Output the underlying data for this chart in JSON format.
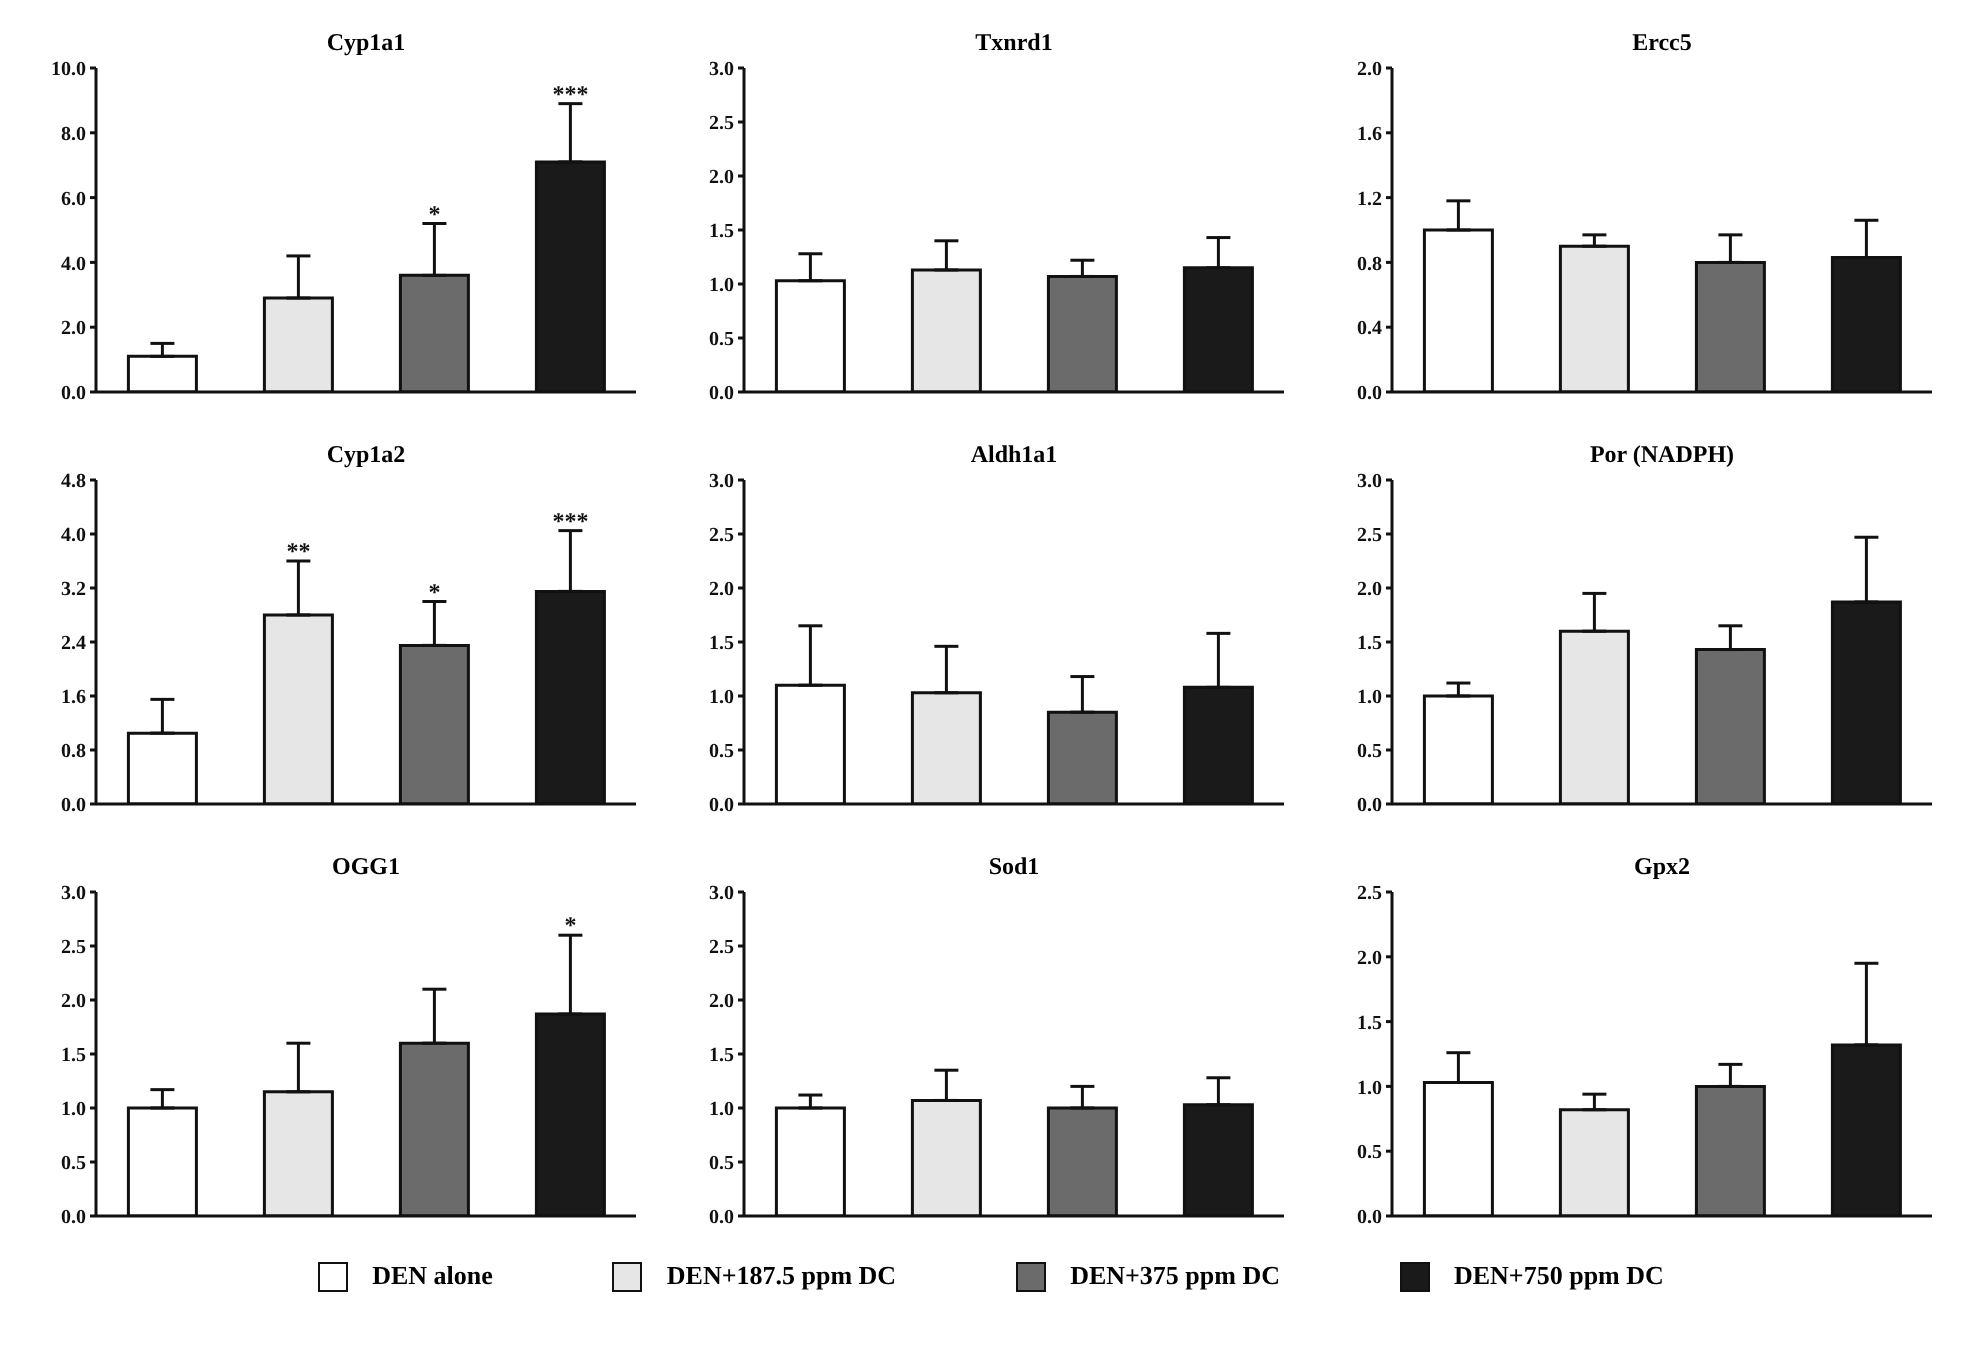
{
  "chart_data": [
    {
      "type": "bar",
      "title": "Cyp1a1",
      "categories": [
        null
      ],
      "legend": "bottom",
      "ylim": [
        0,
        10
      ],
      "yticks": [
        {
          "value": 0,
          "label": "0.0"
        },
        {
          "value": 2,
          "label": "2.0"
        },
        {
          "value": 4,
          "label": "4.0"
        },
        {
          "value": 6,
          "label": "6.0"
        },
        {
          "value": 8,
          "label": "8.0"
        },
        {
          "value": 10,
          "label": "10.0"
        }
      ],
      "series": [
        {
          "name": "DEN alone",
          "color": "#ffffff",
          "values": [
            1.1
          ],
          "errors": [
            [
              1.1,
              1.5
            ]
          ]
        },
        {
          "name": "DEN+187.5 ppm DC",
          "color": "#e6e6e6",
          "values": [
            2.9
          ],
          "errors": [
            [
              2.9,
              4.2
            ]
          ]
        },
        {
          "name": "DEN+375 ppm DC",
          "color": "#6b6b6b",
          "values": [
            3.6
          ],
          "errors": [
            [
              3.6,
              5.2
            ]
          ],
          "value_labels": [
            "*"
          ]
        },
        {
          "name": "DEN+750 ppm DC",
          "color": "#1a1a1a",
          "values": [
            7.1
          ],
          "errors": [
            [
              7.1,
              8.9
            ]
          ],
          "value_labels": [
            "***"
          ]
        }
      ]
    },
    {
      "type": "bar",
      "title": "Txnrd1",
      "categories": [
        null
      ],
      "ylim": [
        0,
        3
      ],
      "yticks": [
        {
          "value": 0,
          "label": "0.0"
        },
        {
          "value": 0.5,
          "label": "0.5"
        },
        {
          "value": 1,
          "label": "1.0"
        },
        {
          "value": 1.5,
          "label": "1.5"
        },
        {
          "value": 2,
          "label": "2.0"
        },
        {
          "value": 2.5,
          "label": "2.5"
        },
        {
          "value": 3,
          "label": "3.0"
        }
      ],
      "series": [
        {
          "color": "#ffffff",
          "values": [
            1.03
          ],
          "errors": [
            [
              1.03,
              1.28
            ]
          ]
        },
        {
          "color": "#e6e6e6",
          "values": [
            1.13
          ],
          "errors": [
            [
              1.13,
              1.4
            ]
          ]
        },
        {
          "color": "#6b6b6b",
          "values": [
            1.07
          ],
          "errors": [
            [
              1.07,
              1.22
            ]
          ]
        },
        {
          "color": "#1a1a1a",
          "values": [
            1.15
          ],
          "errors": [
            [
              1.15,
              1.43
            ]
          ]
        }
      ]
    },
    {
      "type": "bar",
      "title": "Ercc5",
      "categories": [
        null
      ],
      "ylim": [
        0,
        2
      ],
      "yticks": [
        {
          "value": 0,
          "label": "0.0"
        },
        {
          "value": 0.4,
          "label": "0.4"
        },
        {
          "value": 0.8,
          "label": "0.8"
        },
        {
          "value": 1.2,
          "label": "1.2"
        },
        {
          "value": 1.6,
          "label": "1.6"
        },
        {
          "value": 2,
          "label": "2.0"
        }
      ],
      "series": [
        {
          "color": "#ffffff",
          "values": [
            1.0
          ],
          "errors": [
            [
              1.0,
              1.18
            ]
          ]
        },
        {
          "color": "#e6e6e6",
          "values": [
            0.9
          ],
          "errors": [
            [
              0.9,
              0.97
            ]
          ]
        },
        {
          "color": "#6b6b6b",
          "values": [
            0.8
          ],
          "errors": [
            [
              0.8,
              0.97
            ]
          ]
        },
        {
          "color": "#1a1a1a",
          "values": [
            0.83
          ],
          "errors": [
            [
              0.83,
              1.06
            ]
          ]
        }
      ]
    },
    {
      "type": "bar",
      "title": "Cyp1a2",
      "categories": [
        null
      ],
      "ylim": [
        0,
        4.8
      ],
      "yticks": [
        {
          "value": 0,
          "label": "0.0"
        },
        {
          "value": 0.8,
          "label": "0.8"
        },
        {
          "value": 1.6,
          "label": "1.6"
        },
        {
          "value": 2.4,
          "label": "2.4"
        },
        {
          "value": 3.2,
          "label": "3.2"
        },
        {
          "value": 4,
          "label": "4.0"
        },
        {
          "value": 4.8,
          "label": "4.8"
        }
      ],
      "series": [
        {
          "color": "#ffffff",
          "values": [
            1.05
          ],
          "errors": [
            [
              1.05,
              1.55
            ]
          ]
        },
        {
          "color": "#e6e6e6",
          "values": [
            2.8
          ],
          "errors": [
            [
              2.8,
              3.6
            ]
          ],
          "value_labels": [
            "**"
          ]
        },
        {
          "color": "#6b6b6b",
          "values": [
            2.35
          ],
          "errors": [
            [
              2.35,
              3.0
            ]
          ],
          "value_labels": [
            "*"
          ]
        },
        {
          "color": "#1a1a1a",
          "values": [
            3.15
          ],
          "errors": [
            [
              3.15,
              4.05
            ]
          ],
          "value_labels": [
            "***"
          ]
        }
      ]
    },
    {
      "type": "bar",
      "title": "Aldh1a1",
      "categories": [
        null
      ],
      "ylim": [
        0,
        3
      ],
      "yticks": [
        {
          "value": 0,
          "label": "0.0"
        },
        {
          "value": 0.5,
          "label": "0.5"
        },
        {
          "value": 1,
          "label": "1.0"
        },
        {
          "value": 1.5,
          "label": "1.5"
        },
        {
          "value": 2,
          "label": "2.0"
        },
        {
          "value": 2.5,
          "label": "2.5"
        },
        {
          "value": 3,
          "label": "3.0"
        }
      ],
      "series": [
        {
          "color": "#ffffff",
          "values": [
            1.1
          ],
          "errors": [
            [
              1.1,
              1.65
            ]
          ]
        },
        {
          "color": "#e6e6e6",
          "values": [
            1.03
          ],
          "errors": [
            [
              1.03,
              1.46
            ]
          ]
        },
        {
          "color": "#6b6b6b",
          "values": [
            0.85
          ],
          "errors": [
            [
              0.85,
              1.18
            ]
          ]
        },
        {
          "color": "#1a1a1a",
          "values": [
            1.08
          ],
          "errors": [
            [
              1.08,
              1.58
            ]
          ]
        }
      ]
    },
    {
      "type": "bar",
      "title": "Por (NADPH)",
      "categories": [
        null
      ],
      "ylim": [
        0,
        3
      ],
      "yticks": [
        {
          "value": 0,
          "label": "0.0"
        },
        {
          "value": 0.5,
          "label": "0.5"
        },
        {
          "value": 1,
          "label": "1.0"
        },
        {
          "value": 1.5,
          "label": "1.5"
        },
        {
          "value": 2,
          "label": "2.0"
        },
        {
          "value": 2.5,
          "label": "2.5"
        },
        {
          "value": 3,
          "label": "3.0"
        }
      ],
      "series": [
        {
          "color": "#ffffff",
          "values": [
            1.0
          ],
          "errors": [
            [
              1.0,
              1.12
            ]
          ]
        },
        {
          "color": "#e6e6e6",
          "values": [
            1.6
          ],
          "errors": [
            [
              1.6,
              1.95
            ]
          ]
        },
        {
          "color": "#6b6b6b",
          "values": [
            1.43
          ],
          "errors": [
            [
              1.43,
              1.65
            ]
          ]
        },
        {
          "color": "#1a1a1a",
          "values": [
            1.87
          ],
          "errors": [
            [
              1.87,
              2.47
            ]
          ]
        }
      ]
    },
    {
      "type": "bar",
      "title": "OGG1",
      "categories": [
        null
      ],
      "ylim": [
        0,
        3
      ],
      "yticks": [
        {
          "value": 0,
          "label": "0.0"
        },
        {
          "value": 0.5,
          "label": "0.5"
        },
        {
          "value": 1,
          "label": "1.0"
        },
        {
          "value": 1.5,
          "label": "1.5"
        },
        {
          "value": 2,
          "label": "2.0"
        },
        {
          "value": 2.5,
          "label": "2.5"
        },
        {
          "value": 3,
          "label": "3.0"
        }
      ],
      "series": [
        {
          "color": "#ffffff",
          "values": [
            1.0
          ],
          "errors": [
            [
              1.0,
              1.17
            ]
          ]
        },
        {
          "color": "#e6e6e6",
          "values": [
            1.15
          ],
          "errors": [
            [
              1.15,
              1.6
            ]
          ]
        },
        {
          "color": "#6b6b6b",
          "values": [
            1.6
          ],
          "errors": [
            [
              1.6,
              2.1
            ]
          ]
        },
        {
          "color": "#1a1a1a",
          "values": [
            1.87
          ],
          "errors": [
            [
              1.87,
              2.6
            ]
          ],
          "value_labels": [
            "*"
          ]
        }
      ]
    },
    {
      "type": "bar",
      "title": "Sod1",
      "categories": [
        null
      ],
      "ylim": [
        0,
        3
      ],
      "yticks": [
        {
          "value": 0,
          "label": "0.0"
        },
        {
          "value": 0.5,
          "label": "0.5"
        },
        {
          "value": 1,
          "label": "1.0"
        },
        {
          "value": 1.5,
          "label": "1.5"
        },
        {
          "value": 2,
          "label": "2.0"
        },
        {
          "value": 2.5,
          "label": "2.5"
        },
        {
          "value": 3,
          "label": "3.0"
        }
      ],
      "series": [
        {
          "color": "#ffffff",
          "values": [
            1.0
          ],
          "errors": [
            [
              1.0,
              1.12
            ]
          ]
        },
        {
          "color": "#e6e6e6",
          "values": [
            1.07
          ],
          "errors": [
            [
              1.07,
              1.35
            ]
          ]
        },
        {
          "color": "#6b6b6b",
          "values": [
            1.0
          ],
          "errors": [
            [
              1.0,
              1.2
            ]
          ]
        },
        {
          "color": "#1a1a1a",
          "values": [
            1.03
          ],
          "errors": [
            [
              1.03,
              1.28
            ]
          ]
        }
      ]
    },
    {
      "type": "bar",
      "title": "Gpx2",
      "categories": [
        null
      ],
      "ylim": [
        0,
        2.5
      ],
      "yticks": [
        {
          "value": 0,
          "label": "0.0"
        },
        {
          "value": 0.5,
          "label": "0.5"
        },
        {
          "value": 1,
          "label": "1.0"
        },
        {
          "value": 1.5,
          "label": "1.5"
        },
        {
          "value": 2,
          "label": "2.0"
        },
        {
          "value": 2.5,
          "label": "2.5"
        }
      ],
      "series": [
        {
          "color": "#ffffff",
          "values": [
            1.03
          ],
          "errors": [
            [
              1.03,
              1.26
            ]
          ]
        },
        {
          "color": "#e6e6e6",
          "values": [
            0.82
          ],
          "errors": [
            [
              0.82,
              0.94
            ]
          ]
        },
        {
          "color": "#6b6b6b",
          "values": [
            1.0
          ],
          "errors": [
            [
              1.0,
              1.17
            ]
          ]
        },
        {
          "color": "#1a1a1a",
          "values": [
            1.32
          ],
          "errors": [
            [
              1.32,
              1.95
            ]
          ]
        }
      ]
    }
  ]
}
